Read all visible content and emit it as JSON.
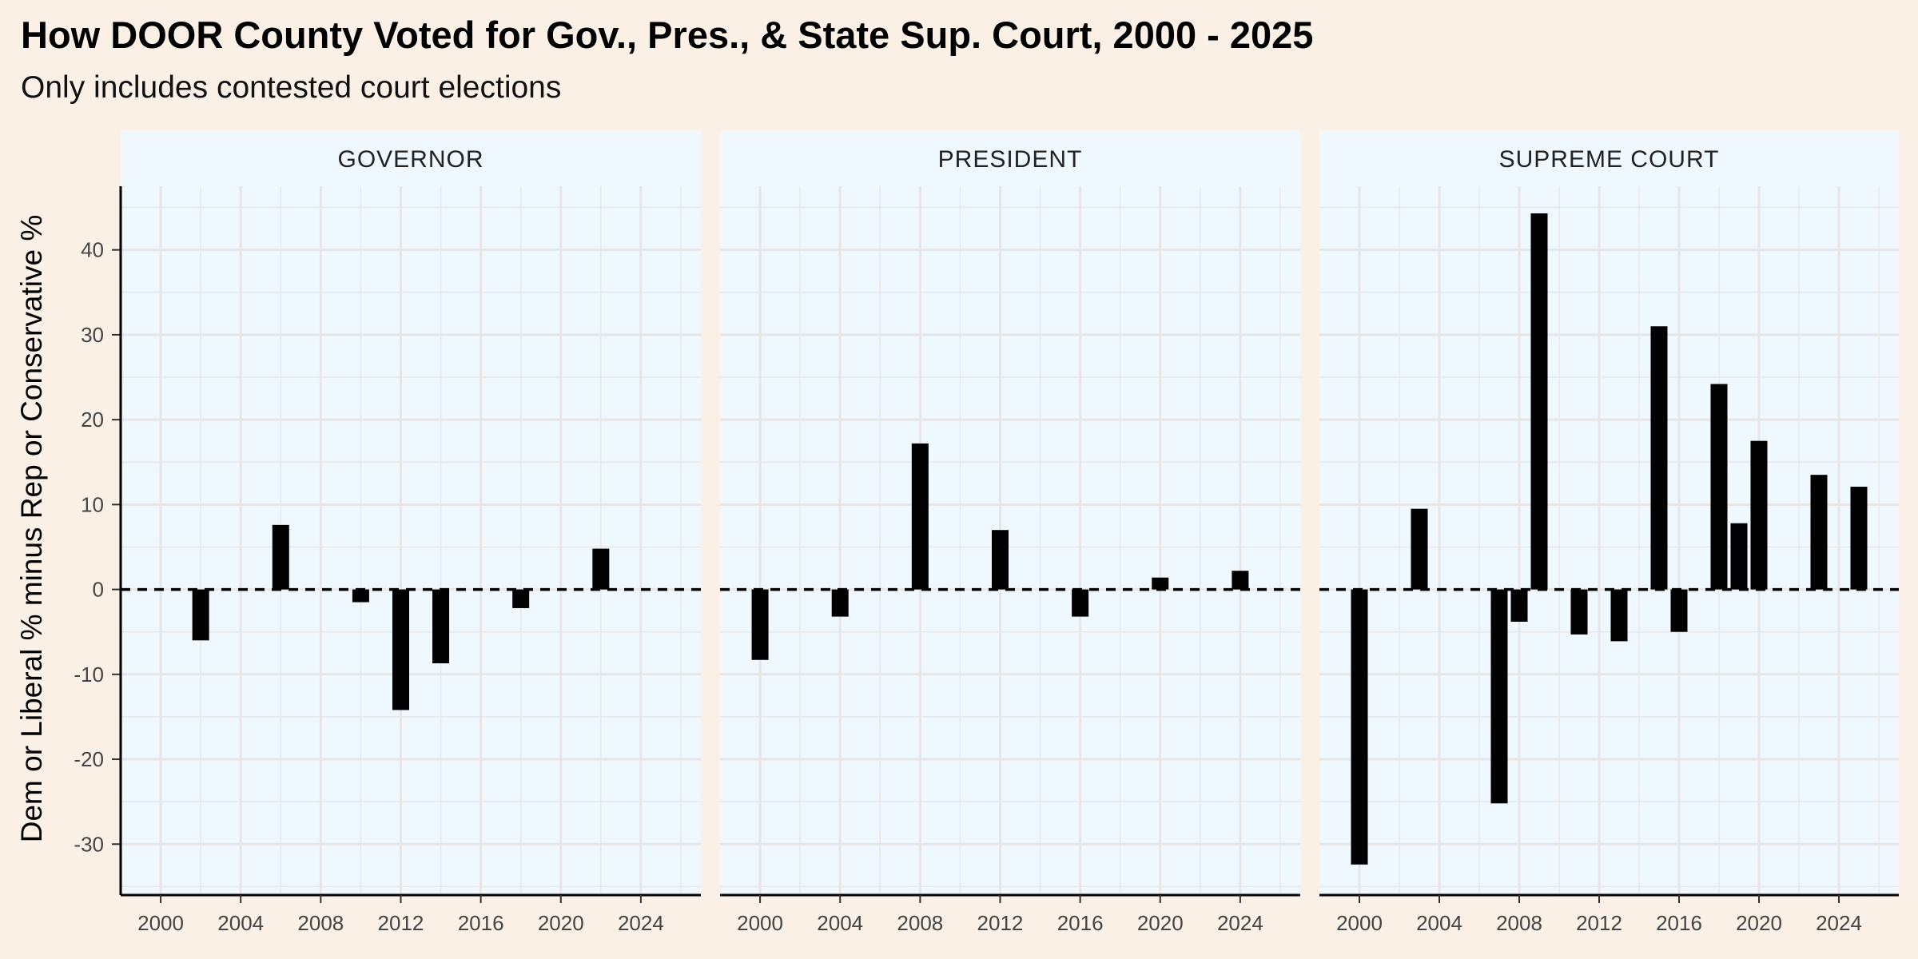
{
  "chart_data": {
    "type": "bar",
    "title": "How DOOR County Voted for Gov., Pres., & State Sup. Court, 2000 - 2025",
    "subtitle": "Only includes contested court elections",
    "ylabel": "Dem or Liberal % minus Rep or Conservative %",
    "xlabel": "",
    "ylim": [
      -36,
      47.5
    ],
    "xlim": [
      1998,
      2027
    ],
    "y_ticks": [
      -30,
      -20,
      -10,
      0,
      10,
      20,
      30,
      40
    ],
    "x_ticks": [
      2000,
      2004,
      2008,
      2012,
      2016,
      2020,
      2024
    ],
    "reference_line": 0,
    "grid": true,
    "colors": {
      "background": "#faf0e6",
      "panel": "#f0f8ff",
      "bar": "#000000",
      "grid": "#e8e8e8",
      "strip": "#f0f8ff"
    },
    "panels": [
      {
        "name": "GOVERNOR",
        "points": [
          {
            "x": 2002,
            "y": -6.0
          },
          {
            "x": 2006,
            "y": 7.6
          },
          {
            "x": 2010,
            "y": -1.5
          },
          {
            "x": 2012,
            "y": -14.2
          },
          {
            "x": 2014,
            "y": -8.7
          },
          {
            "x": 2018,
            "y": -2.2
          },
          {
            "x": 2022,
            "y": 4.8
          }
        ]
      },
      {
        "name": "PRESIDENT",
        "points": [
          {
            "x": 2000,
            "y": -8.3
          },
          {
            "x": 2004,
            "y": -3.2
          },
          {
            "x": 2008,
            "y": 17.2
          },
          {
            "x": 2012,
            "y": 7.0
          },
          {
            "x": 2016,
            "y": -3.2
          },
          {
            "x": 2020,
            "y": 1.4
          },
          {
            "x": 2024,
            "y": 2.2
          }
        ]
      },
      {
        "name": "SUPREME COURT",
        "points": [
          {
            "x": 2000,
            "y": -32.4
          },
          {
            "x": 2003,
            "y": 9.5
          },
          {
            "x": 2007,
            "y": -25.2
          },
          {
            "x": 2008,
            "y": -3.8
          },
          {
            "x": 2009,
            "y": 44.3
          },
          {
            "x": 2011,
            "y": -5.3
          },
          {
            "x": 2013,
            "y": -6.1
          },
          {
            "x": 2015,
            "y": 31.0
          },
          {
            "x": 2016,
            "y": -5.0
          },
          {
            "x": 2018,
            "y": 24.2
          },
          {
            "x": 2019,
            "y": 7.8
          },
          {
            "x": 2020,
            "y": 17.5
          },
          {
            "x": 2023,
            "y": 13.5
          },
          {
            "x": 2025,
            "y": 12.1
          }
        ]
      }
    ]
  }
}
